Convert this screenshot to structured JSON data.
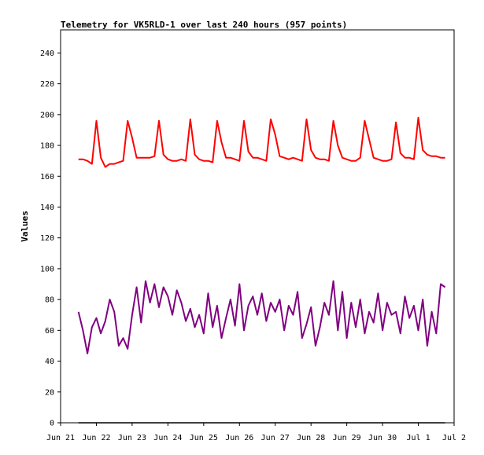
{
  "chart_data": {
    "type": "line",
    "title": "Telemetry for VK5RLD-1 over last 240 hours (957 points)",
    "xlabel": "",
    "ylabel": "Values",
    "x_ticks": [
      "Jun 21",
      "Jun 22",
      "Jun 23",
      "Jun 24",
      "Jun 25",
      "Jun 26",
      "Jun 27",
      "Jun 28",
      "Jun 29",
      "Jun 30",
      "Jul 1",
      "Jul 2"
    ],
    "y_ticks": [
      "0",
      "20",
      "40",
      "60",
      "80",
      "100",
      "120",
      "140",
      "160",
      "180",
      "200",
      "220",
      "240"
    ],
    "xlim": [
      "2021-06-21 00:00",
      "2021-07-02 00:00"
    ],
    "ylim": [
      0,
      255
    ],
    "grid": false,
    "series": [
      {
        "color": "#ff0000",
        "x": [
          "2021-06-21 12:00",
          "2021-06-21 15:00",
          "2021-06-21 18:00",
          "2021-06-21 21:00",
          "2021-06-22 00:00",
          "2021-06-22 03:00",
          "2021-06-22 06:00",
          "2021-06-22 09:00",
          "2021-06-22 12:00",
          "2021-06-22 15:00",
          "2021-06-22 18:00",
          "2021-06-22 21:00",
          "2021-06-23 00:00",
          "2021-06-23 03:00",
          "2021-06-23 06:00",
          "2021-06-23 09:00",
          "2021-06-23 12:00",
          "2021-06-23 15:00",
          "2021-06-23 18:00",
          "2021-06-23 21:00",
          "2021-06-24 00:00",
          "2021-06-24 03:00",
          "2021-06-24 06:00",
          "2021-06-24 09:00",
          "2021-06-24 12:00",
          "2021-06-24 15:00",
          "2021-06-24 18:00",
          "2021-06-24 21:00",
          "2021-06-25 00:00",
          "2021-06-25 03:00",
          "2021-06-25 06:00",
          "2021-06-25 09:00",
          "2021-06-25 12:00",
          "2021-06-25 15:00",
          "2021-06-25 18:00",
          "2021-06-25 21:00",
          "2021-06-26 00:00",
          "2021-06-26 03:00",
          "2021-06-26 06:00",
          "2021-06-26 09:00",
          "2021-06-26 12:00",
          "2021-06-26 15:00",
          "2021-06-26 18:00",
          "2021-06-26 21:00",
          "2021-06-27 00:00",
          "2021-06-27 03:00",
          "2021-06-27 06:00",
          "2021-06-27 09:00",
          "2021-06-27 12:00",
          "2021-06-27 15:00",
          "2021-06-27 18:00",
          "2021-06-27 21:00",
          "2021-06-28 00:00",
          "2021-06-28 03:00",
          "2021-06-28 06:00",
          "2021-06-28 09:00",
          "2021-06-28 12:00",
          "2021-06-28 15:00",
          "2021-06-28 18:00",
          "2021-06-28 21:00",
          "2021-06-29 00:00",
          "2021-06-29 03:00",
          "2021-06-29 06:00",
          "2021-06-29 09:00",
          "2021-06-29 12:00",
          "2021-06-29 15:00",
          "2021-06-29 18:00",
          "2021-06-29 21:00",
          "2021-06-30 00:00",
          "2021-06-30 03:00",
          "2021-06-30 06:00",
          "2021-06-30 09:00",
          "2021-06-30 12:00",
          "2021-06-30 15:00",
          "2021-06-30 18:00",
          "2021-06-30 21:00",
          "2021-07-01 00:00",
          "2021-07-01 03:00",
          "2021-07-01 06:00",
          "2021-07-01 09:00",
          "2021-07-01 12:00",
          "2021-07-01 15:00",
          "2021-07-01 18:00"
        ],
        "values": [
          171,
          171,
          170,
          168,
          196,
          172,
          166,
          168,
          168,
          169,
          170,
          196,
          185,
          172,
          172,
          172,
          172,
          173,
          196,
          174,
          171,
          170,
          170,
          171,
          170,
          197,
          174,
          171,
          170,
          170,
          169,
          196,
          182,
          172,
          172,
          171,
          170,
          196,
          176,
          172,
          172,
          171,
          170,
          197,
          187,
          173,
          172,
          171,
          172,
          171,
          170,
          197,
          177,
          172,
          171,
          171,
          170,
          196,
          180,
          172,
          171,
          170,
          170,
          172,
          196,
          184,
          172,
          171,
          170,
          170,
          171,
          195,
          175,
          172,
          172,
          171,
          198,
          177,
          174,
          173,
          173,
          172,
          172
        ]
      },
      {
        "color": "#800080",
        "x": [
          "2021-06-21 12:00",
          "2021-06-21 15:00",
          "2021-06-21 18:00",
          "2021-06-21 21:00",
          "2021-06-22 00:00",
          "2021-06-22 03:00",
          "2021-06-22 06:00",
          "2021-06-22 09:00",
          "2021-06-22 12:00",
          "2021-06-22 15:00",
          "2021-06-22 18:00",
          "2021-06-22 21:00",
          "2021-06-23 00:00",
          "2021-06-23 03:00",
          "2021-06-23 06:00",
          "2021-06-23 09:00",
          "2021-06-23 12:00",
          "2021-06-23 15:00",
          "2021-06-23 18:00",
          "2021-06-23 21:00",
          "2021-06-24 00:00",
          "2021-06-24 03:00",
          "2021-06-24 06:00",
          "2021-06-24 09:00",
          "2021-06-24 12:00",
          "2021-06-24 15:00",
          "2021-06-24 18:00",
          "2021-06-24 21:00",
          "2021-06-25 00:00",
          "2021-06-25 03:00",
          "2021-06-25 06:00",
          "2021-06-25 09:00",
          "2021-06-25 12:00",
          "2021-06-25 15:00",
          "2021-06-25 18:00",
          "2021-06-25 21:00",
          "2021-06-26 00:00",
          "2021-06-26 03:00",
          "2021-06-26 06:00",
          "2021-06-26 09:00",
          "2021-06-26 12:00",
          "2021-06-26 15:00",
          "2021-06-26 18:00",
          "2021-06-26 21:00",
          "2021-06-27 00:00",
          "2021-06-27 03:00",
          "2021-06-27 06:00",
          "2021-06-27 09:00",
          "2021-06-27 12:00",
          "2021-06-27 15:00",
          "2021-06-27 18:00",
          "2021-06-27 21:00",
          "2021-06-28 00:00",
          "2021-06-28 03:00",
          "2021-06-28 06:00",
          "2021-06-28 09:00",
          "2021-06-28 12:00",
          "2021-06-28 15:00",
          "2021-06-28 18:00",
          "2021-06-28 21:00",
          "2021-06-29 00:00",
          "2021-06-29 03:00",
          "2021-06-29 06:00",
          "2021-06-29 09:00",
          "2021-06-29 12:00",
          "2021-06-29 15:00",
          "2021-06-29 18:00",
          "2021-06-29 21:00",
          "2021-06-30 00:00",
          "2021-06-30 03:00",
          "2021-06-30 06:00",
          "2021-06-30 09:00",
          "2021-06-30 12:00",
          "2021-06-30 15:00",
          "2021-06-30 18:00",
          "2021-06-30 21:00",
          "2021-07-01 00:00",
          "2021-07-01 03:00",
          "2021-07-01 06:00",
          "2021-07-01 09:00",
          "2021-07-01 12:00",
          "2021-07-01 15:00",
          "2021-07-01 18:00"
        ],
        "values": [
          72,
          60,
          45,
          62,
          68,
          58,
          66,
          80,
          72,
          50,
          55,
          48,
          70,
          88,
          65,
          92,
          78,
          90,
          75,
          88,
          82,
          70,
          86,
          78,
          66,
          74,
          62,
          70,
          58,
          84,
          62,
          76,
          55,
          68,
          80,
          63,
          90,
          60,
          76,
          82,
          70,
          84,
          66,
          78,
          72,
          80,
          60,
          76,
          70,
          85,
          55,
          64,
          75,
          50,
          62,
          78,
          70,
          92,
          60,
          85,
          55,
          78,
          62,
          80,
          58,
          72,
          65,
          84,
          60,
          78,
          70,
          72,
          58,
          82,
          68,
          76,
          60,
          80,
          50,
          72,
          58,
          90,
          88
        ]
      },
      {
        "color": "#000000",
        "x": [
          "2021-06-21 12:00",
          "2021-07-01 18:00"
        ],
        "values": [
          0,
          0
        ]
      }
    ]
  }
}
